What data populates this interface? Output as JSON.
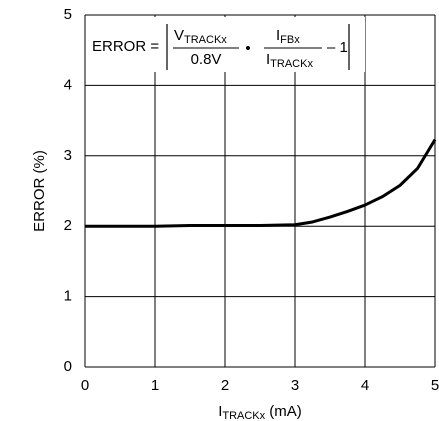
{
  "chart_data": {
    "type": "line",
    "ylabel": "ERROR (%)",
    "xlabel": [
      "I",
      "TRACKx",
      " (mA)"
    ],
    "annotation": {
      "lhs": "ERROR =",
      "num1": [
        "V",
        "TRACKx"
      ],
      "den1": "0.8V",
      "dot": "•",
      "num2": [
        "I",
        "FBx"
      ],
      "den2": [
        "I",
        "TRACKx"
      ],
      "tail": "– 1"
    },
    "x": [
      0,
      0.5,
      1,
      1.5,
      2,
      2.5,
      3,
      3.25,
      3.5,
      3.75,
      4,
      4.25,
      4.5,
      4.75,
      5
    ],
    "series": [
      {
        "color": "#000000",
        "values": [
          2.0,
          2.0,
          2.0,
          2.01,
          2.01,
          2.01,
          2.02,
          2.06,
          2.13,
          2.21,
          2.3,
          2.42,
          2.58,
          2.82,
          3.23
        ]
      }
    ],
    "xlim": [
      0,
      5
    ],
    "xticks": [
      0,
      1,
      2,
      3,
      4,
      5
    ],
    "ylim": [
      0,
      5
    ],
    "yticks": [
      0,
      1,
      2,
      3,
      4,
      5
    ],
    "grid": true
  }
}
